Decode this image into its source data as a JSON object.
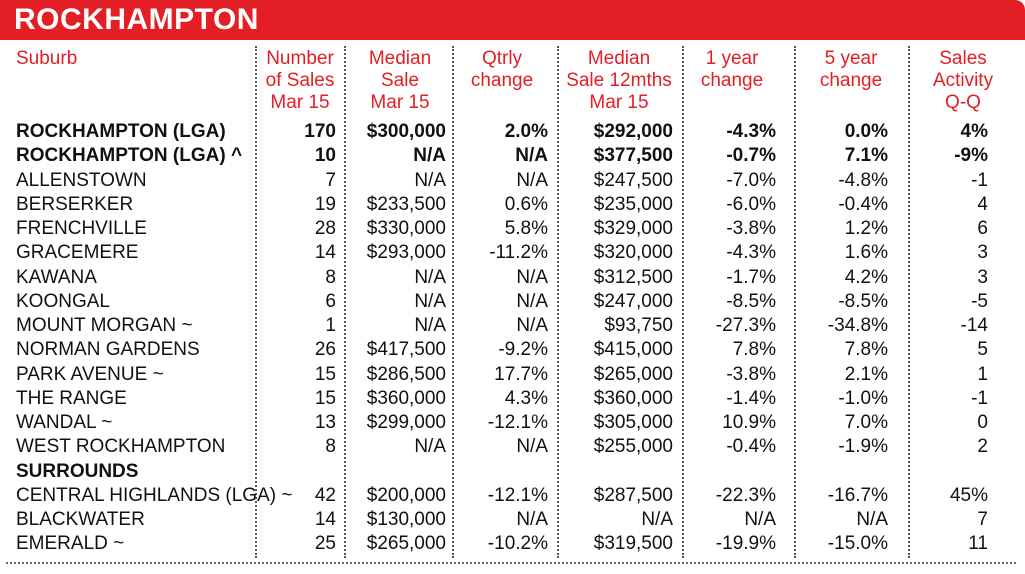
{
  "title": "ROCKHAMPTON",
  "headers": [
    "Suburb",
    "Number of Sales Mar 15",
    "Median Sale Mar 15",
    "Qtrly change",
    "Median Sale 12mths Mar 15",
    "1 year change",
    "5 year change",
    "Sales Activity Q-Q"
  ],
  "header_lines": [
    [
      "Suburb"
    ],
    [
      "Number",
      "of Sales",
      "Mar 15"
    ],
    [
      "Median",
      "Sale",
      "Mar 15"
    ],
    [
      "Qtrly",
      "change"
    ],
    [
      "Median",
      "Sale 12mths",
      "Mar 15"
    ],
    [
      "1 year",
      "change"
    ],
    [
      "5 year",
      "change"
    ],
    [
      "Sales",
      "Activity",
      "Q-Q"
    ]
  ],
  "rows": [
    {
      "bold": true,
      "cells": [
        "ROCKHAMPTON (LGA)",
        "170",
        "$300,000",
        "2.0%",
        "$292,000",
        "-4.3%",
        "0.0%",
        "4%"
      ]
    },
    {
      "bold": true,
      "cells": [
        "ROCKHAMPTON (LGA) ^",
        "10",
        "N/A",
        "N/A",
        "$377,500",
        "-0.7%",
        "7.1%",
        "-9%"
      ]
    },
    {
      "bold": false,
      "cells": [
        "ALLENSTOWN",
        "7",
        "N/A",
        "N/A",
        "$247,500",
        "-7.0%",
        "-4.8%",
        "-1"
      ]
    },
    {
      "bold": false,
      "cells": [
        "BERSERKER",
        "19",
        "$233,500",
        "0.6%",
        "$235,000",
        "-6.0%",
        "-0.4%",
        "4"
      ]
    },
    {
      "bold": false,
      "cells": [
        "FRENCHVILLE",
        "28",
        "$330,000",
        "5.8%",
        "$329,000",
        "-3.8%",
        "1.2%",
        "6"
      ]
    },
    {
      "bold": false,
      "cells": [
        "GRACEMERE",
        "14",
        "$293,000",
        "-11.2%",
        "$320,000",
        "-4.3%",
        "1.6%",
        "3"
      ]
    },
    {
      "bold": false,
      "cells": [
        "KAWANA",
        "8",
        "N/A",
        "N/A",
        "$312,500",
        "-1.7%",
        "4.2%",
        "3"
      ]
    },
    {
      "bold": false,
      "cells": [
        "KOONGAL",
        "6",
        "N/A",
        "N/A",
        "$247,000",
        "-8.5%",
        "-8.5%",
        "-5"
      ]
    },
    {
      "bold": false,
      "cells": [
        "MOUNT MORGAN ~",
        "1",
        "N/A",
        "N/A",
        "$93,750",
        "-27.3%",
        "-34.8%",
        "-14"
      ]
    },
    {
      "bold": false,
      "cells": [
        "NORMAN GARDENS",
        "26",
        "$417,500",
        "-9.2%",
        "$415,000",
        "7.8%",
        "7.8%",
        "5"
      ]
    },
    {
      "bold": false,
      "cells": [
        "PARK AVENUE ~",
        "15",
        "$286,500",
        "17.7%",
        "$265,000",
        "-3.8%",
        "2.1%",
        "1"
      ]
    },
    {
      "bold": false,
      "cells": [
        "THE RANGE",
        "15",
        "$360,000",
        "4.3%",
        "$360,000",
        "-1.4%",
        "-1.0%",
        "-1"
      ]
    },
    {
      "bold": false,
      "cells": [
        "WANDAL ~",
        "13",
        "$299,000",
        "-12.1%",
        "$305,000",
        "10.9%",
        "7.0%",
        "0"
      ]
    },
    {
      "bold": false,
      "cells": [
        "WEST ROCKHAMPTON",
        "8",
        "N/A",
        "N/A",
        "$255,000",
        "-0.4%",
        "-1.9%",
        "2"
      ]
    },
    {
      "bold": true,
      "cells": [
        "SURROUNDS",
        "",
        "",
        "",
        "",
        "",
        "",
        ""
      ]
    },
    {
      "bold": false,
      "cells": [
        "CENTRAL HIGHLANDS (LGA) ~",
        "42",
        "$200,000",
        "-12.1%",
        "$287,500",
        "-22.3%",
        "-16.7%",
        "45%"
      ]
    },
    {
      "bold": false,
      "cells": [
        "BLACKWATER",
        "14",
        "$130,000",
        "N/A",
        "N/A",
        "N/A",
        "N/A",
        "7"
      ]
    },
    {
      "bold": false,
      "cells": [
        "EMERALD ~",
        "25",
        "$265,000",
        "-10.2%",
        "$319,500",
        "-19.9%",
        "-15.0%",
        "11"
      ]
    }
  ],
  "colors": {
    "banner": "#e31e24",
    "header_text": "#e31e24",
    "body_text": "#111111"
  }
}
